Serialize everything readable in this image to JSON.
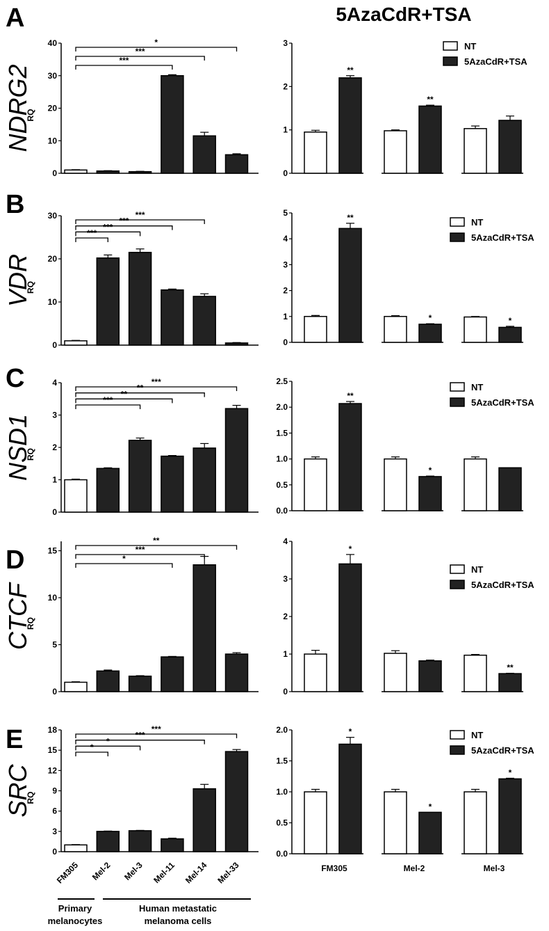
{
  "figure_title": "5AzaCdR+TSA",
  "legend": {
    "nt": "NT",
    "treated": "5AzaCdR+TSA"
  },
  "colors": {
    "treated": "#222222",
    "nt": "#ffffff",
    "axis": "#000000"
  },
  "chart_data": [
    {
      "panel": "A",
      "gene": "NDRG2",
      "ylabel": "RQ",
      "type": "bar",
      "left": {
        "categories": [
          "FM305",
          "Mel-2",
          "Mel-3",
          "Mel-11",
          "Mel-14",
          "Mel-33"
        ],
        "values": [
          1.0,
          0.7,
          0.5,
          30.0,
          11.5,
          5.7
        ],
        "errors": [
          0.1,
          0.1,
          0.1,
          0.3,
          1.1,
          0.3
        ],
        "ylim": [
          0,
          40
        ],
        "yticks": [
          "0",
          "10",
          "20",
          "30",
          "40"
        ],
        "ytick_values": [
          0,
          10,
          20,
          30,
          40
        ],
        "brackets": [
          {
            "to": 3,
            "label": "***"
          },
          {
            "to": 4,
            "label": "***"
          },
          {
            "to": 5,
            "label": "*"
          }
        ]
      },
      "right": {
        "groups": [
          "FM305",
          "Mel-2",
          "Mel-3"
        ],
        "nt": [
          0.95,
          0.98,
          1.03
        ],
        "nt_err": [
          0.04,
          0.02,
          0.06
        ],
        "treated": [
          2.2,
          1.55,
          1.22
        ],
        "treated_err": [
          0.05,
          0.02,
          0.1
        ],
        "sig": [
          "**",
          "**",
          ""
        ],
        "ylim": [
          0,
          3
        ],
        "yticks": [
          "0",
          "1",
          "2",
          "3"
        ],
        "ytick_values": [
          0,
          1,
          2,
          3
        ]
      }
    },
    {
      "panel": "B",
      "gene": "VDR",
      "ylabel": "RQ",
      "type": "bar",
      "left": {
        "categories": [
          "FM305",
          "Mel-2",
          "Mel-3",
          "Mel-11",
          "Mel-14",
          "Mel-33"
        ],
        "values": [
          1.0,
          20.2,
          21.5,
          12.8,
          11.3,
          0.5
        ],
        "errors": [
          0.1,
          0.7,
          0.8,
          0.2,
          0.6,
          0.1
        ],
        "ylim": [
          0,
          30
        ],
        "yticks": [
          "0",
          "10",
          "20",
          "30"
        ],
        "ytick_values": [
          0,
          10,
          20,
          30
        ],
        "brackets": [
          {
            "to": 1,
            "label": "***"
          },
          {
            "to": 2,
            "label": "***"
          },
          {
            "to": 3,
            "label": "***"
          },
          {
            "to": 4,
            "label": "***"
          }
        ]
      },
      "right": {
        "groups": [
          "FM305",
          "Mel-2",
          "Mel-3"
        ],
        "nt": [
          1.0,
          1.0,
          0.98
        ],
        "nt_err": [
          0.04,
          0.03,
          0.02
        ],
        "treated": [
          4.4,
          0.7,
          0.58
        ],
        "treated_err": [
          0.2,
          0.02,
          0.04
        ],
        "sig": [
          "**",
          "*",
          "*"
        ],
        "ylim": [
          0,
          5
        ],
        "yticks": [
          "0",
          "1",
          "2",
          "3",
          "4",
          "5"
        ],
        "ytick_values": [
          0,
          1,
          2,
          3,
          4,
          5
        ]
      }
    },
    {
      "panel": "C",
      "gene": "NSD1",
      "ylabel": "RQ",
      "type": "bar",
      "left": {
        "categories": [
          "FM305",
          "Mel-2",
          "Mel-3",
          "Mel-11",
          "Mel-14",
          "Mel-33"
        ],
        "values": [
          1.0,
          1.35,
          2.22,
          1.73,
          1.98,
          3.2
        ],
        "errors": [
          0.02,
          0.02,
          0.07,
          0.02,
          0.14,
          0.1
        ],
        "ylim": [
          0,
          4
        ],
        "yticks": [
          "0",
          "1",
          "2",
          "3",
          "4"
        ],
        "ytick_values": [
          0,
          1,
          2,
          3,
          4
        ],
        "brackets": [
          {
            "to": 2,
            "label": "***"
          },
          {
            "to": 3,
            "label": "**"
          },
          {
            "to": 4,
            "label": "**"
          },
          {
            "to": 5,
            "label": "***"
          }
        ]
      },
      "right": {
        "groups": [
          "FM305",
          "Mel-2",
          "Mel-3"
        ],
        "nt": [
          1.0,
          1.0,
          1.0
        ],
        "nt_err": [
          0.04,
          0.04,
          0.04
        ],
        "treated": [
          2.07,
          0.66,
          0.83
        ],
        "treated_err": [
          0.04,
          0.01,
          0.0
        ],
        "sig": [
          "**",
          "*",
          ""
        ],
        "ylim": [
          0,
          2.5
        ],
        "yticks": [
          "0.0",
          "0.5",
          "1.0",
          "1.5",
          "2.0",
          "2.5"
        ],
        "ytick_values": [
          0,
          0.5,
          1,
          1.5,
          2,
          2.5
        ]
      }
    },
    {
      "panel": "D",
      "gene": "CTCF",
      "ylabel": "RQ",
      "type": "bar",
      "left": {
        "categories": [
          "FM305",
          "Mel-2",
          "Mel-3",
          "Mel-11",
          "Mel-14",
          "Mel-33"
        ],
        "values": [
          1.0,
          2.2,
          1.65,
          3.7,
          13.5,
          4.0
        ],
        "errors": [
          0.05,
          0.1,
          0.05,
          0.05,
          0.9,
          0.15
        ],
        "ylim": [
          0,
          16
        ],
        "yticks": [
          "0",
          "5",
          "10",
          "15"
        ],
        "ytick_values": [
          0,
          5,
          10,
          15
        ],
        "brackets": [
          {
            "to": 3,
            "label": "*"
          },
          {
            "to": 4,
            "label": "***"
          },
          {
            "to": 5,
            "label": "**"
          }
        ]
      },
      "right": {
        "groups": [
          "FM305",
          "Mel-2",
          "Mel-3"
        ],
        "nt": [
          1.0,
          1.02,
          0.97
        ],
        "nt_err": [
          0.1,
          0.07,
          0.02
        ],
        "treated": [
          3.4,
          0.82,
          0.48
        ],
        "treated_err": [
          0.25,
          0.02,
          0.01
        ],
        "sig": [
          "*",
          "",
          "**"
        ],
        "ylim": [
          0,
          4
        ],
        "yticks": [
          "0",
          "1",
          "2",
          "3",
          "4"
        ],
        "ytick_values": [
          0,
          1,
          2,
          3,
          4
        ]
      }
    },
    {
      "panel": "E",
      "gene": "SRC",
      "ylabel": "RQ",
      "type": "bar",
      "left": {
        "categories": [
          "FM305",
          "Mel-2",
          "Mel-3",
          "Mel-11",
          "Mel-14",
          "Mel-33"
        ],
        "values": [
          1.0,
          3.0,
          3.1,
          1.9,
          9.3,
          14.8
        ],
        "errors": [
          0.05,
          0.05,
          0.05,
          0.1,
          0.65,
          0.3
        ],
        "ylim": [
          0,
          18
        ],
        "yticks": [
          "0",
          "3",
          "6",
          "9",
          "12",
          "15",
          "18"
        ],
        "ytick_values": [
          0,
          3,
          6,
          9,
          12,
          15,
          18
        ],
        "brackets": [
          {
            "to": 1,
            "label": "*"
          },
          {
            "to": 2,
            "label": "*"
          },
          {
            "to": 4,
            "label": "***"
          },
          {
            "to": 5,
            "label": "***"
          }
        ]
      },
      "right": {
        "groups": [
          "FM305",
          "Mel-2",
          "Mel-3"
        ],
        "nt": [
          1.0,
          1.0,
          1.0
        ],
        "nt_err": [
          0.04,
          0.04,
          0.04
        ],
        "treated": [
          1.77,
          0.67,
          1.21
        ],
        "treated_err": [
          0.11,
          0.0,
          0.01
        ],
        "sig": [
          "*",
          "*",
          "*"
        ],
        "ylim": [
          0,
          2.0
        ],
        "yticks": [
          "0.0",
          "0.5",
          "1.0",
          "1.5",
          "2.0"
        ],
        "ytick_values": [
          0,
          0.5,
          1,
          1.5,
          2
        ]
      }
    }
  ],
  "x_labels_left": [
    "FM305",
    "Mel-2",
    "Mel-3",
    "Mel-11",
    "Mel-14",
    "Mel-33"
  ],
  "x_labels_right": [
    "FM305",
    "Mel-2",
    "Mel-3"
  ],
  "group_labels": {
    "primary_line1": "Primary",
    "primary_line2": "melanocytes",
    "metastatic_line1": "Human metastatic",
    "metastatic_line2": "melanoma cells"
  }
}
